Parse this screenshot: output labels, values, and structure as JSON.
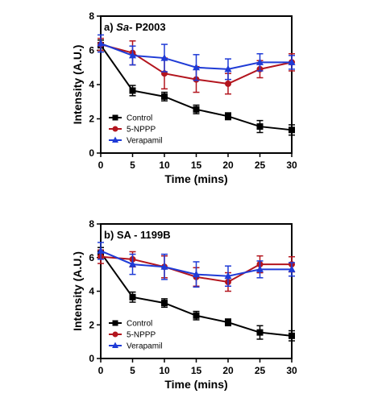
{
  "chart_data": [
    {
      "type": "line",
      "title_prefix": "a)",
      "title_italic": "Sa",
      "title_rest": "- P2003",
      "xlabel": "Time (mins)",
      "ylabel": "Intensity (A.U.)",
      "x": [
        0,
        5,
        10,
        15,
        20,
        25,
        30
      ],
      "xticks": [
        "0",
        "5",
        "10",
        "15",
        "20",
        "25",
        "30"
      ],
      "yticks": [
        "0",
        "2",
        "4",
        "6",
        "8"
      ],
      "xlim": [
        0,
        30
      ],
      "ylim": [
        0,
        8
      ],
      "legend_position": "bottom-left",
      "series": [
        {
          "name": "Control",
          "color": "#000000",
          "marker": "square",
          "values": [
            6.3,
            3.65,
            3.3,
            2.55,
            2.15,
            1.55,
            1.35
          ],
          "errors": [
            0.3,
            0.3,
            0.25,
            0.25,
            0.2,
            0.35,
            0.3
          ]
        },
        {
          "name": "5-NPPP",
          "color": "#b3151e",
          "marker": "circle",
          "values": [
            6.35,
            5.85,
            4.65,
            4.3,
            4.05,
            4.9,
            5.3
          ],
          "errors": [
            0.35,
            0.7,
            0.9,
            0.75,
            0.6,
            0.5,
            0.5
          ]
        },
        {
          "name": "Verapamil",
          "color": "#1f3bd6",
          "marker": "triangle",
          "values": [
            6.4,
            5.7,
            5.55,
            5.0,
            4.9,
            5.3,
            5.3
          ],
          "errors": [
            0.5,
            0.55,
            0.8,
            0.75,
            0.6,
            0.5,
            0.4
          ]
        }
      ]
    },
    {
      "type": "line",
      "title_prefix": "b)",
      "title_italic": "",
      "title_rest": "SA - 1199B",
      "xlabel": "Time (mins)",
      "ylabel": "Intensity (A.U.)",
      "x": [
        0,
        5,
        10,
        15,
        20,
        25,
        30
      ],
      "xticks": [
        "0",
        "5",
        "10",
        "15",
        "20",
        "25",
        "30"
      ],
      "yticks": [
        "0",
        "2",
        "4",
        "6",
        "8"
      ],
      "xlim": [
        0,
        30
      ],
      "ylim": [
        0,
        8
      ],
      "legend_position": "bottom-left",
      "series": [
        {
          "name": "Control",
          "color": "#000000",
          "marker": "square",
          "values": [
            6.3,
            3.65,
            3.3,
            2.55,
            2.15,
            1.55,
            1.35
          ],
          "errors": [
            0.3,
            0.3,
            0.25,
            0.25,
            0.2,
            0.4,
            0.3
          ]
        },
        {
          "name": "5-NPPP",
          "color": "#b3151e",
          "marker": "circle",
          "values": [
            6.05,
            5.9,
            5.45,
            4.85,
            4.55,
            5.6,
            5.6
          ],
          "errors": [
            0.4,
            0.45,
            0.65,
            0.55,
            0.55,
            0.5,
            0.45
          ]
        },
        {
          "name": "Verapamil",
          "color": "#1f3bd6",
          "marker": "triangle",
          "values": [
            6.4,
            5.6,
            5.45,
            5.0,
            4.9,
            5.3,
            5.3
          ],
          "errors": [
            0.5,
            0.6,
            0.75,
            0.75,
            0.6,
            0.5,
            0.4
          ]
        }
      ]
    }
  ]
}
